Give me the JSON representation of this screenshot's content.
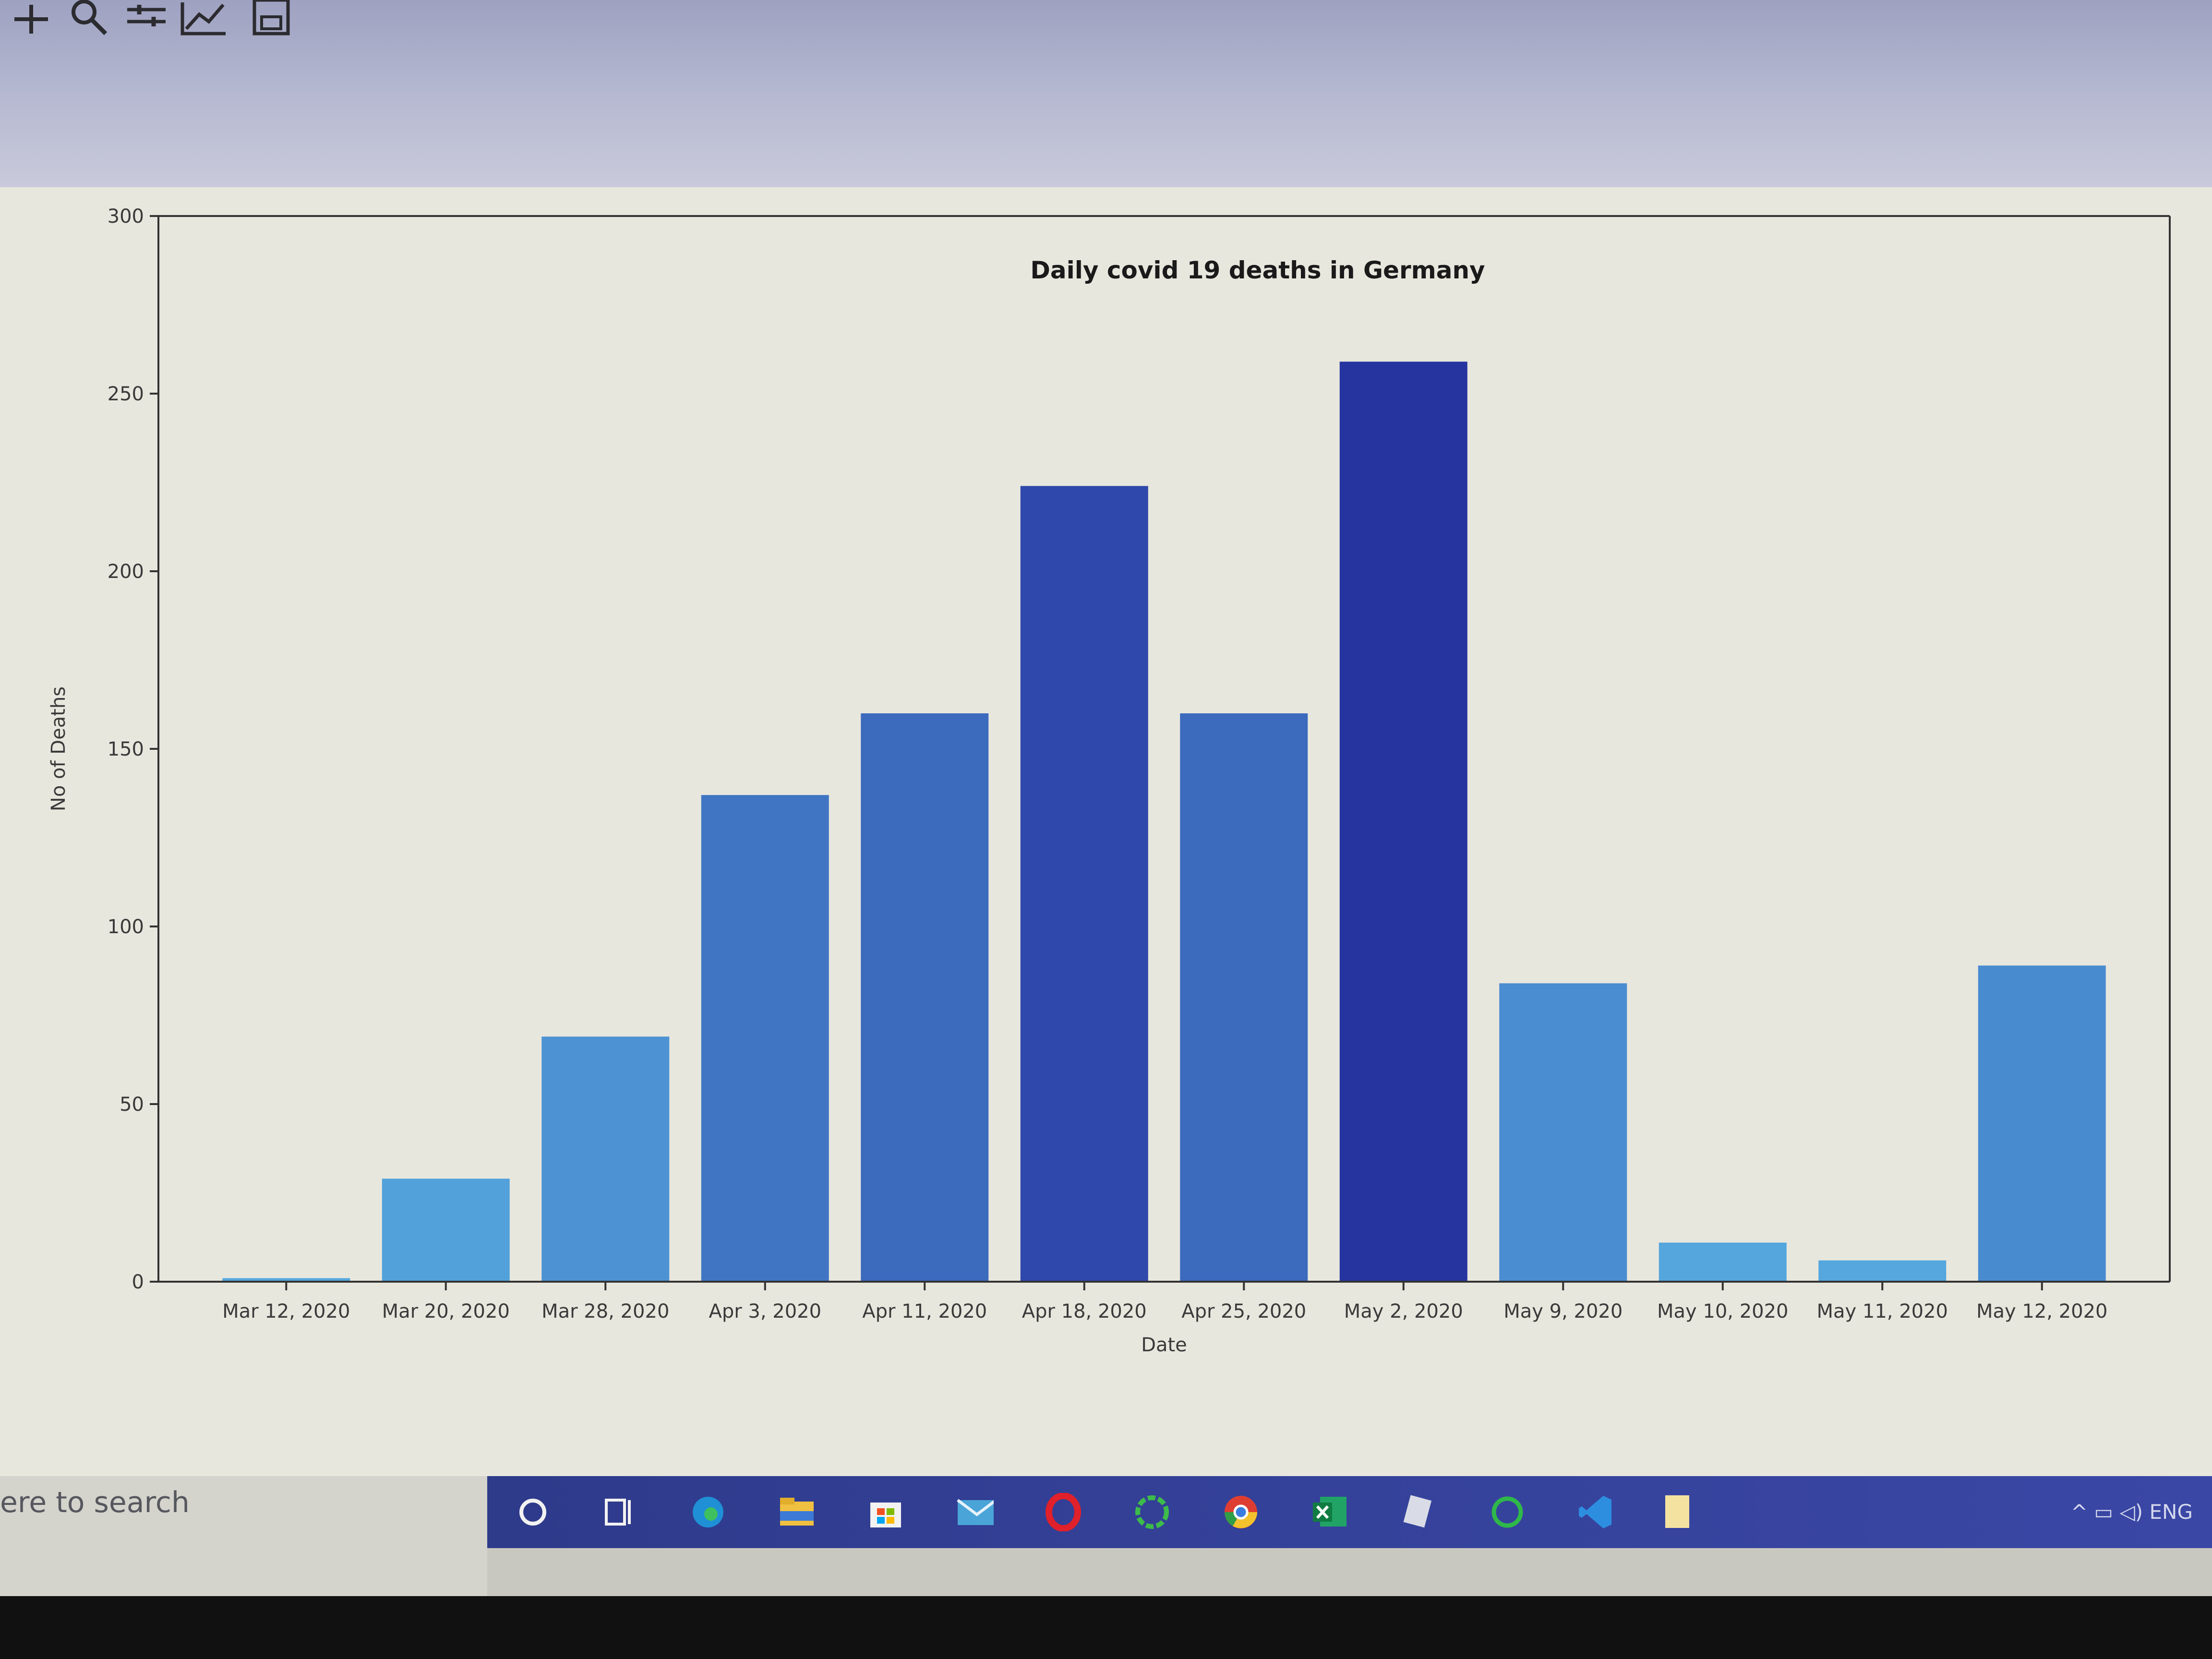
{
  "toolbar": {
    "icons": [
      "pan-icon",
      "zoom-icon",
      "configure-subplots-icon",
      "edit-axis-icon",
      "save-icon"
    ]
  },
  "chart_data": {
    "type": "bar",
    "title": "Daily covid 19 deaths in Germany",
    "xlabel": "Date",
    "ylabel": "No of Deaths",
    "categories": [
      "Mar 12, 2020",
      "Mar 20, 2020",
      "Mar 28, 2020",
      "Apr 3, 2020",
      "Apr 11, 2020",
      "Apr 18, 2020",
      "Apr 25, 2020",
      "May 2, 2020",
      "May 9, 2020",
      "May 10, 2020",
      "May 11, 2020",
      "May 12, 2020"
    ],
    "values": [
      1,
      29,
      69,
      137,
      160,
      224,
      160,
      259,
      84,
      11,
      6,
      89
    ],
    "ylim": [
      0,
      300
    ],
    "yticks": [
      "0",
      "50",
      "100",
      "150",
      "200",
      "250",
      "300"
    ],
    "grid": false,
    "colors": {
      "low": "#55a8de",
      "high": "#2634a0"
    }
  },
  "taskbar": {
    "search_text": "ere to search",
    "icons": [
      "cortana-icon",
      "task-view-icon",
      "edge-icon",
      "file-explorer-icon",
      "store-icon",
      "mail-icon",
      "opera-icon",
      "spinner-app-icon",
      "chrome-icon",
      "excel-icon",
      "notepad-icon",
      "green-circle-icon",
      "vscode-icon",
      "file-icon"
    ],
    "tray_text": "ENG"
  }
}
